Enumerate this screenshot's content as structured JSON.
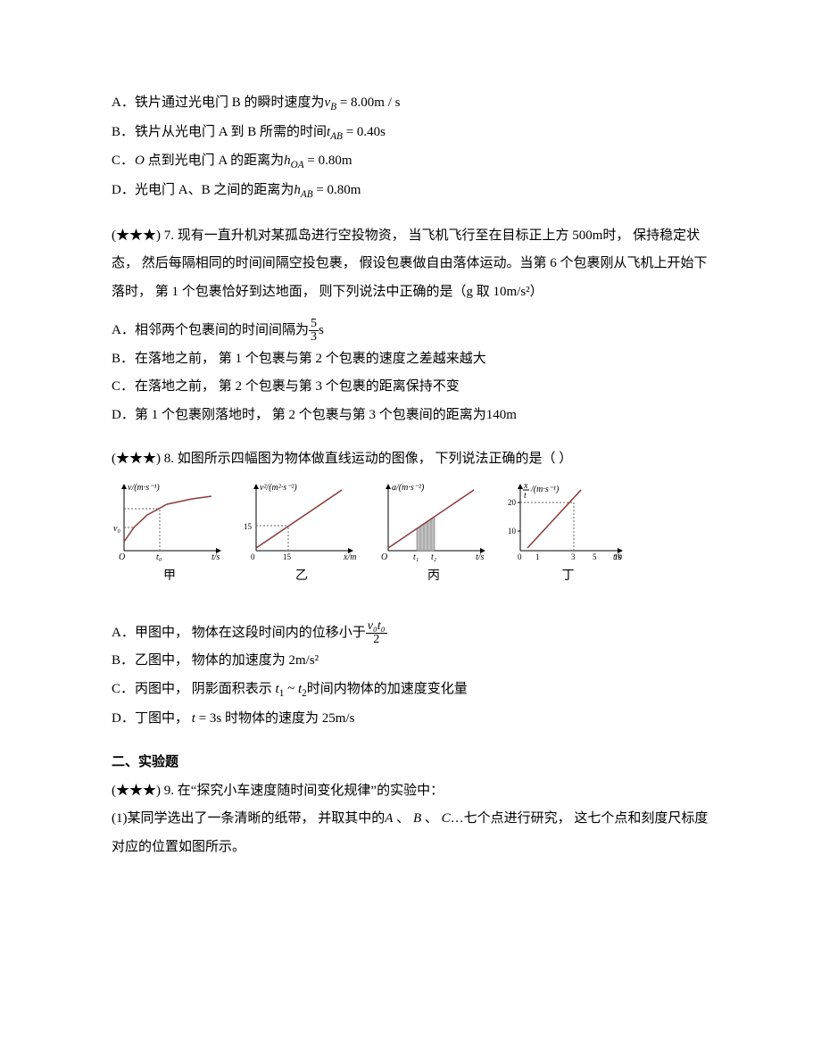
{
  "q_prev_options": {
    "A": {
      "letter": "A．",
      "text_pre": "铁片通过光电门 B 的瞬时速度为",
      "var": "v",
      "sub": "B",
      "eq": " = 8.00m / s"
    },
    "B": {
      "letter": "B．",
      "text_pre": "铁片从光电门 A 到 B 所需的时间",
      "var": "t",
      "sub": "AB",
      "eq": " = 0.40s"
    },
    "C": {
      "letter": "C．",
      "o": "O",
      "text_pre": " 点到光电门 A 的距离为",
      "var": "h",
      "sub": "OA",
      "eq": " = 0.80m"
    },
    "D": {
      "letter": "D．",
      "text_pre": "光电门 A、B 之间的距离为",
      "var": "h",
      "sub": "AB",
      "eq": " = 0.80m"
    }
  },
  "q7": {
    "prefix": "(★★★) 7. ",
    "stem": "现有一直升机对某孤岛进行空投物资， 当飞机飞行至在目标正上方 500m时， 保持稳定状态， 然后每隔相同的时间间隔空投包裹， 假设包裹做自由落体运动。当第 6 个包裹刚从飞机上开始下落时， 第 1 个包裹恰好到达地面， 则下列说法中正确的是（g 取 10m/s²）",
    "A": {
      "letter": "A．",
      "pre": "相邻两个包裹间的时间间隔为",
      "frac_num": "5",
      "frac_den": "3",
      "unit": "s"
    },
    "B": {
      "letter": "B．",
      "text": "在落地之前， 第 1 个包裹与第 2 个包裹的速度之差越来越大"
    },
    "C": {
      "letter": "C．",
      "text": "在落地之前， 第 2 个包裹与第 3 个包裹的距离保持不变"
    },
    "D": {
      "letter": "D．",
      "text": "第 1 个包裹刚落地时， 第 2 个包裹与第 3 个包裹间的距离为140m"
    }
  },
  "q8": {
    "prefix": "(★★★) 8. ",
    "stem": "如图所示四幅图为物体做直线运动的图像， 下列说法正确的是（    ）",
    "charts": {
      "width": 130,
      "height": 90,
      "axis_color": "#000",
      "curve_color": "#8a3a3a",
      "grid_dash": "2,2",
      "jia": {
        "label": "甲",
        "ylabel": "v/(m·s⁻¹)",
        "xlabel": "t/s",
        "v0": "v₀",
        "t0": "t₀",
        "curve": [
          [
            14,
            68
          ],
          [
            25,
            52
          ],
          [
            40,
            38
          ],
          [
            62,
            26
          ],
          [
            90,
            20
          ],
          [
            112,
            17
          ]
        ]
      },
      "yi": {
        "label": "乙",
        "ylabel": "v²/(m²·s⁻²)",
        "xlabel": "x/m",
        "ytick": "15",
        "xtick": "15",
        "line": [
          [
            14,
            75
          ],
          [
            110,
            10
          ]
        ],
        "dash_x": 50,
        "dash_y": 50
      },
      "bing": {
        "label": "丙",
        "ylabel": "a/(m·s⁻²)",
        "xlabel": "t/s",
        "t1": "t₁",
        "t2": "t₂",
        "line": [
          [
            14,
            75
          ],
          [
            110,
            10
          ]
        ],
        "shade_x1": 46,
        "shade_x2": 66,
        "shade_y1": 53,
        "shade_y2": 40
      },
      "ding": {
        "label": "丁",
        "ylabel_frac": {
          "num": "x",
          "den": "t"
        },
        "ylabel_unit": "/(m·s⁻¹)",
        "xlabel": "t/s",
        "yticks": [
          {
            "v": "10",
            "y": 56
          },
          {
            "v": "20",
            "y": 24
          }
        ],
        "xticks": [
          {
            "v": "0",
            "x": 14
          },
          {
            "v": "1",
            "x": 34
          },
          {
            "v": "3",
            "x": 74
          },
          {
            "v": "5",
            "x": 98
          },
          {
            "v": "10",
            "x": 122
          }
        ],
        "line": [
          [
            22,
            75
          ],
          [
            82,
            10
          ]
        ],
        "dash_x": 74,
        "dash_y": 24
      }
    },
    "A": {
      "letter": "A．",
      "pre": "甲图中， 物体在这段时间内的位移小于",
      "frac_num": "v₀t₀",
      "frac_den": "2"
    },
    "B": {
      "letter": "B．",
      "text": "乙图中， 物体的加速度为 2m/s²"
    },
    "C": {
      "letter": "C．",
      "pre": "丙图中， 阴影面积表示 ",
      "t1": "t",
      "s1": "1",
      "mid": " ~ ",
      "t2": "t",
      "s2": "2",
      "post": "时间内物体的加速度变化量"
    },
    "D": {
      "letter": "D．",
      "pre": "丁图中， ",
      "t": "t",
      "eq": " = 3s 时物体的速度为 25m/s"
    }
  },
  "section2": "二、实验题",
  "q9": {
    "prefix": "(★★★) 9. ",
    "stem": "在“探究小车速度随时间变化规律”的实验中：",
    "p1_pre": "(1)某同学选出了一条清晰的纸带， 并取其中的",
    "A": "A",
    "B": "B",
    "C": "C",
    "p1_mid1": " 、 ",
    "p1_mid2": " 、 ",
    "p1_post": "…七个点进行研究， 这七个点和刻度尺标度对应的位置如图所示。"
  }
}
